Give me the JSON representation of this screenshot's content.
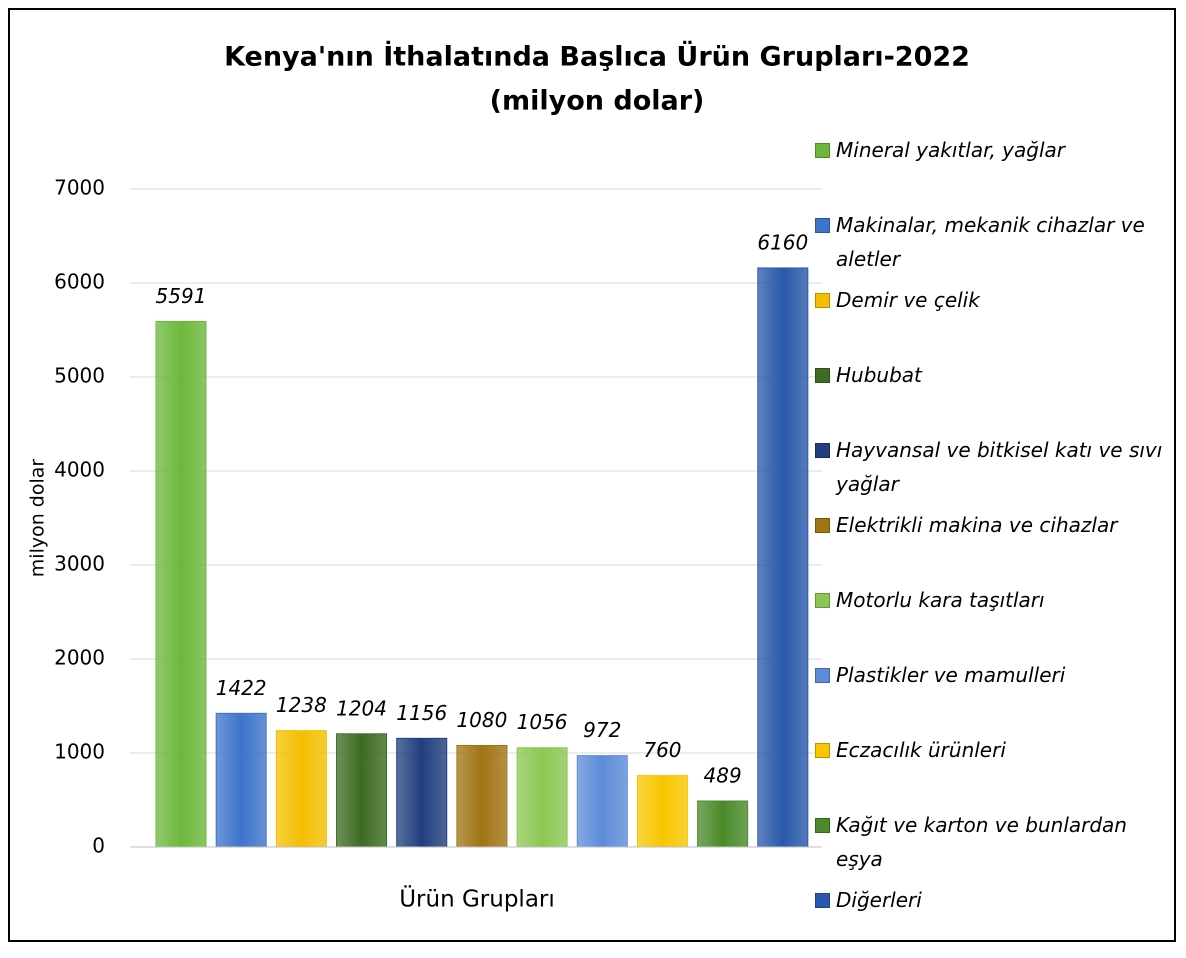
{
  "chart_data": {
    "type": "bar",
    "title": "Kenya'nın İthalatında Başlıca Ürün Grupları-2022",
    "subtitle": "(milyon dolar)",
    "y_label": "milyon dolar",
    "x_label": "Ürün Grupları",
    "ylim": [
      0,
      7000
    ],
    "yticks": [
      0,
      1000,
      2000,
      3000,
      4000,
      5000,
      6000,
      7000
    ],
    "grid": true,
    "legend": "right",
    "series": [
      {
        "name": "Mineral yakıtlar, yağlar",
        "color": "#6cb83c",
        "values": [
          5591
        ]
      },
      {
        "name": "Makinalar, mekanik cihazlar ve aletler",
        "color": "#3e74cc",
        "values": [
          1422
        ]
      },
      {
        "name": "Demir ve çelik",
        "color": "#f4bf00",
        "values": [
          1238
        ]
      },
      {
        "name": "Hububat",
        "color": "#3d6b22",
        "values": [
          1204
        ]
      },
      {
        "name": "Hayvansal ve bitkisel katı ve sıvı yağlar",
        "color": "#213f7e",
        "values": [
          1156
        ]
      },
      {
        "name": "Elektrikli makina ve cihazlar",
        "color": "#a07414",
        "values": [
          1080
        ]
      },
      {
        "name": "Motorlu kara taşıtları",
        "color": "#8cc752",
        "values": [
          1056
        ]
      },
      {
        "name": "Plastikler ve mamulleri",
        "color": "#5c8cd8",
        "values": [
          972
        ]
      },
      {
        "name": "Eczacılık ürünleri",
        "color": "#f7c600",
        "values": [
          760
        ]
      },
      {
        "name": "Kağıt ve karton ve bunlardan eşya",
        "color": "#4a8a2a",
        "values": [
          489
        ]
      },
      {
        "name": "Diğerleri",
        "color": "#2a58ab",
        "values": [
          6160
        ]
      }
    ]
  }
}
